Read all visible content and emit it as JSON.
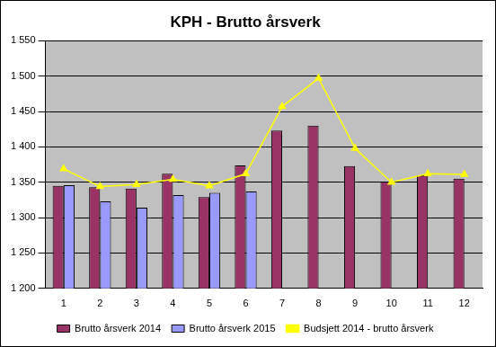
{
  "chart_data": {
    "type": "bar",
    "title": "KPH - Brutto årsverk",
    "categories": [
      "1",
      "2",
      "3",
      "4",
      "5",
      "6",
      "7",
      "8",
      "9",
      "10",
      "11",
      "12"
    ],
    "series": [
      {
        "name": "Brutto årsverk 2014",
        "color": "#993366",
        "values": [
          1345,
          1343,
          1341,
          1362,
          1329,
          1374,
          1423,
          1430,
          1373,
          1351,
          1360,
          1355
        ]
      },
      {
        "name": "Brutto årsverk 2015",
        "color": "#9999ff",
        "values": [
          1346,
          1323,
          1314,
          1332,
          1335,
          1337,
          null,
          null,
          null,
          null,
          null,
          null
        ]
      },
      {
        "name": "Budsjett 2014 - brutto årsverk",
        "color": "#ffff00",
        "type": "line",
        "marker": "triangle",
        "values": [
          1369,
          1344,
          1347,
          1354,
          1345,
          1362,
          1457,
          1497,
          1398,
          1350,
          1362,
          1361
        ]
      }
    ],
    "ylim": [
      1200,
      1550
    ],
    "yticks": [
      {
        "value": 1200,
        "label": "1 200"
      },
      {
        "value": 1250,
        "label": "1 250"
      },
      {
        "value": 1300,
        "label": "1 300"
      },
      {
        "value": 1350,
        "label": "1 350"
      },
      {
        "value": 1400,
        "label": "1 400"
      },
      {
        "value": 1450,
        "label": "1 450"
      },
      {
        "value": 1500,
        "label": "1 500"
      },
      {
        "value": 1550,
        "label": "1 550"
      }
    ],
    "grid": true,
    "legend": "bottom"
  }
}
